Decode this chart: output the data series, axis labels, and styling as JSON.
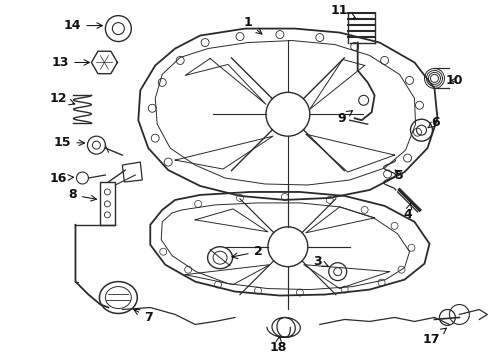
{
  "bg_color": "#ffffff",
  "fig_width": 4.89,
  "fig_height": 3.6,
  "dpi": 100,
  "line_color": "#2a2a2a",
  "label_color": "#111111"
}
